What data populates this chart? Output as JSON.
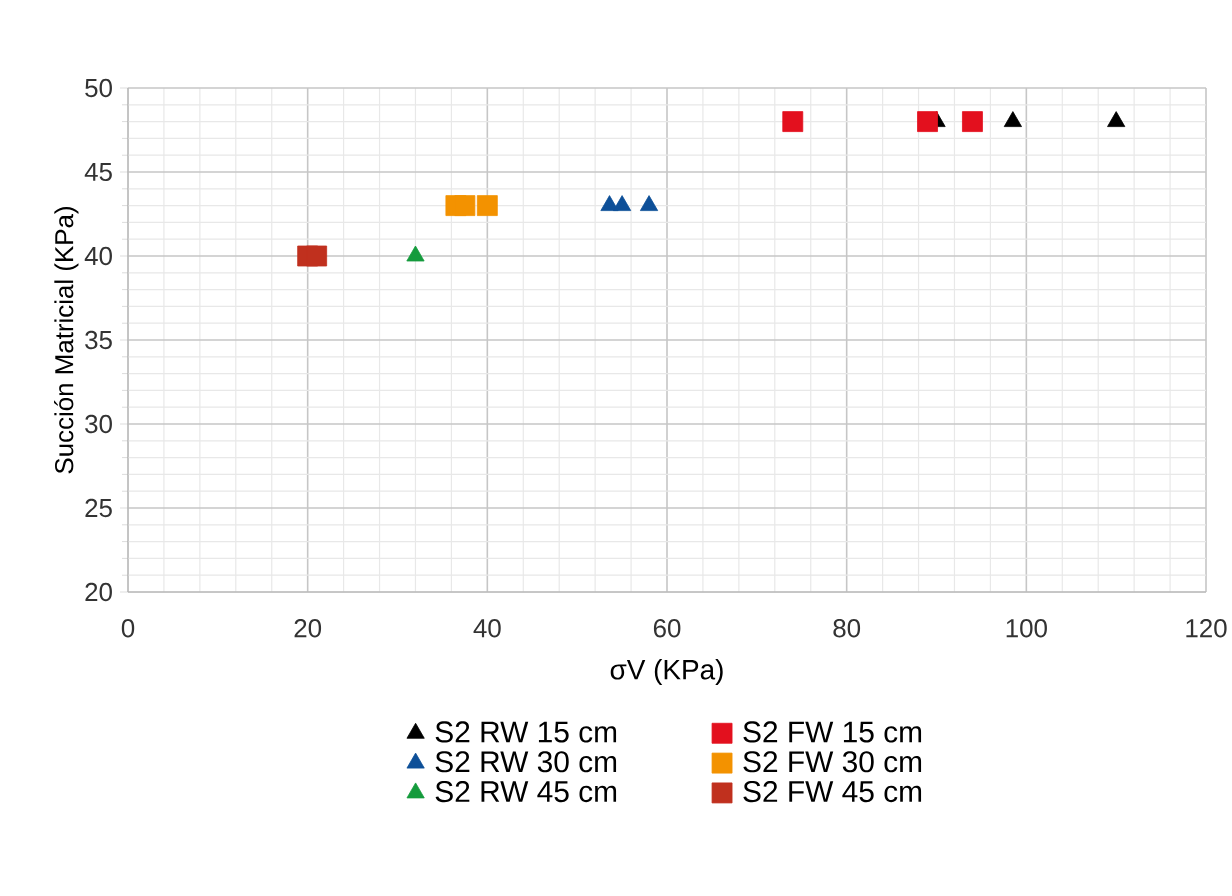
{
  "chart_data": {
    "type": "scatter",
    "xlabel": "σV (KPa)",
    "ylabel": "Succión Matricial (KPa)",
    "xlim": [
      0,
      120
    ],
    "xticks": [
      0,
      20,
      40,
      60,
      80,
      100,
      120
    ],
    "ylim": [
      20,
      50
    ],
    "yticks": [
      20,
      25,
      30,
      35,
      40,
      45,
      50
    ],
    "grid": true,
    "legend": "bottom",
    "series": [
      {
        "name": "S2 RW 15 cm",
        "color": "#000000",
        "marker": "triangle",
        "x": [
          90,
          98.5,
          110
        ],
        "values": [
          48,
          48,
          48
        ]
      },
      {
        "name": "S2 FW 15 cm",
        "color": "#e3101e",
        "marker": "square",
        "x": [
          74,
          89,
          94
        ],
        "values": [
          48,
          48,
          48
        ]
      },
      {
        "name": "S2 RW 30 cm",
        "color": "#0d4f98",
        "marker": "triangle",
        "x": [
          53.6,
          55,
          58
        ],
        "values": [
          43,
          43,
          43
        ]
      },
      {
        "name": "S2 FW 30 cm",
        "color": "#f39200",
        "marker": "square",
        "x": [
          36.5,
          37.5,
          40
        ],
        "values": [
          43,
          43,
          43
        ]
      },
      {
        "name": "S2 RW 45 cm",
        "color": "#149b3c",
        "marker": "triangle",
        "x": [
          32
        ],
        "values": [
          40
        ]
      },
      {
        "name": "S2 FW 45 cm",
        "color": "#c0301e",
        "marker": "square",
        "x": [
          20,
          21
        ],
        "values": [
          40,
          40
        ]
      }
    ]
  }
}
